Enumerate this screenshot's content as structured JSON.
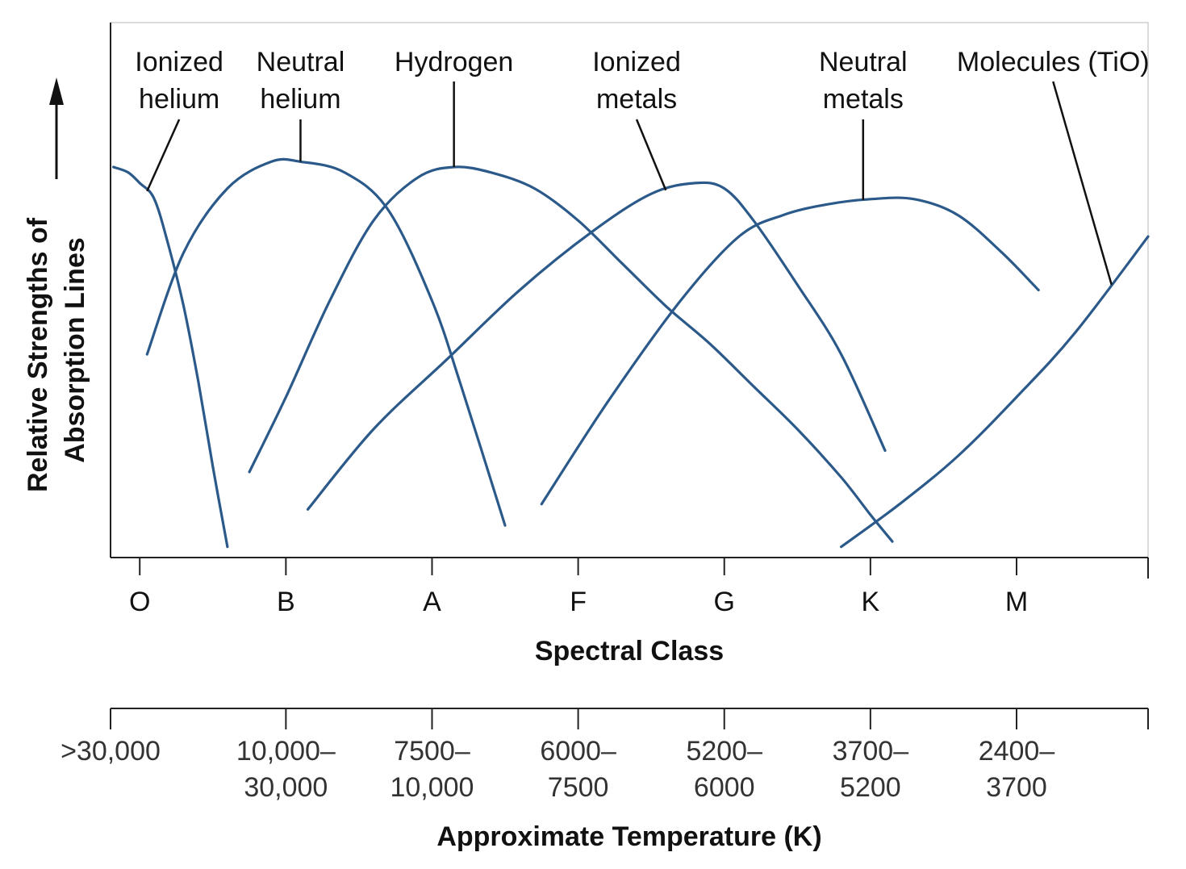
{
  "chart_data": {
    "type": "line",
    "title": "",
    "xlabel": "Spectral Class",
    "ylabel_lines": [
      "Relative Strengths of",
      "Absorption Lines"
    ],
    "y_arrow": "up-arrow",
    "categories": [
      "O",
      "B",
      "A",
      "F",
      "G",
      "K",
      "M"
    ],
    "xlim": [
      -0.2,
      6.9
    ],
    "ylim": [
      0,
      100
    ],
    "temperature_axis": {
      "label": "Approximate Temperature (K)",
      "ticks": [
        [
          ">30,000"
        ],
        [
          "10,000–",
          "30,000"
        ],
        [
          "7500–",
          "10,000"
        ],
        [
          "6000–",
          "7500"
        ],
        [
          "5200–",
          "6000"
        ],
        [
          "3700–",
          "5200"
        ],
        [
          "2400–",
          "3700"
        ]
      ]
    },
    "color": "#2b5a8a",
    "series": [
      {
        "name": "Ionized helium",
        "label_lines": [
          "Ionized",
          "helium"
        ],
        "x": [
          -0.18,
          -0.08,
          0.0,
          0.1,
          0.2,
          0.3,
          0.4,
          0.5,
          0.6
        ],
        "y": [
          73,
          72,
          70,
          67,
          58,
          47,
          33,
          17,
          2
        ],
        "leader_x": 0.05,
        "label_x": 0.27
      },
      {
        "name": "Neutral helium",
        "label_lines": [
          "Neutral",
          "helium"
        ],
        "x": [
          0.05,
          0.3,
          0.6,
          0.9,
          1.1,
          1.4,
          1.7,
          2.0,
          2.2,
          2.5
        ],
        "y": [
          38,
          57,
          69,
          74,
          74,
          72,
          65,
          48,
          32,
          6
        ],
        "leader_x": 1.1,
        "label_x": 1.1
      },
      {
        "name": "Hydrogen",
        "label_lines": [
          "Hydrogen"
        ],
        "x": [
          0.75,
          1.0,
          1.3,
          1.6,
          1.9,
          2.15,
          2.4,
          2.7,
          3.0,
          3.3,
          3.6,
          3.9,
          4.2,
          4.5,
          4.8,
          5.0,
          5.15
        ],
        "y": [
          16,
          30,
          48,
          63,
          71,
          73,
          72,
          69,
          63,
          55,
          47,
          40,
          32,
          24,
          15,
          8,
          3
        ],
        "leader_x": 2.15,
        "label_x": 2.15
      },
      {
        "name": "Ionized metals",
        "label_lines": [
          "Ionized",
          "metals"
        ],
        "x": [
          1.15,
          1.6,
          2.1,
          2.6,
          3.1,
          3.5,
          3.8,
          4.0,
          4.2,
          4.5,
          4.8,
          5.1
        ],
        "y": [
          9,
          24,
          37,
          50,
          61,
          68,
          70,
          69,
          63,
          51,
          38,
          20
        ],
        "leader_x": 3.6,
        "label_x": 3.4
      },
      {
        "name": "Neutral metals",
        "label_lines": [
          "Neutral",
          "metals"
        ],
        "x": [
          2.75,
          3.2,
          3.7,
          4.1,
          4.4,
          4.7,
          5.0,
          5.3,
          5.6,
          5.9,
          6.15
        ],
        "y": [
          10,
          29,
          48,
          60,
          64,
          66,
          67,
          67,
          64,
          57,
          50
        ],
        "leader_x": 4.95,
        "label_x": 4.95
      },
      {
        "name": "Molecules (TiO)",
        "label_lines": [
          "Molecules (TiO)"
        ],
        "x": [
          4.8,
          5.2,
          5.6,
          6.0,
          6.4,
          6.9
        ],
        "y": [
          2,
          10,
          19,
          30,
          42,
          60
        ],
        "leader_x": 6.65,
        "label_x": 6.25
      }
    ]
  }
}
